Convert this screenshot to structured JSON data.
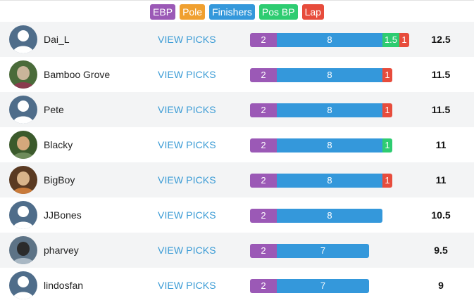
{
  "legend": [
    {
      "label": "EBP",
      "color": "#9b59b6"
    },
    {
      "label": "Pole",
      "color": "#f0a030"
    },
    {
      "label": "Finishers",
      "color": "#3498db"
    },
    {
      "label": "Pos BP",
      "color": "#2ecc71"
    },
    {
      "label": "Lap",
      "color": "#e74c3c"
    }
  ],
  "view_picks_label": "VIEW PICKS",
  "rows": [
    {
      "name": "Dai_L",
      "avatar": "default",
      "ebp": "2",
      "finishers": "8",
      "pos_bp": "1.5",
      "lap": "1",
      "score": "12.5"
    },
    {
      "name": "Bamboo Grove",
      "avatar": "photo",
      "ebp": "2",
      "finishers": "8",
      "pos_bp": "",
      "lap": "1",
      "score": "11.5"
    },
    {
      "name": "Pete",
      "avatar": "default",
      "ebp": "2",
      "finishers": "8",
      "pos_bp": "",
      "lap": "1",
      "score": "11.5"
    },
    {
      "name": "Blacky",
      "avatar": "photo",
      "ebp": "2",
      "finishers": "8",
      "pos_bp": "1",
      "lap": "",
      "score": "11"
    },
    {
      "name": "BigBoy",
      "avatar": "photo",
      "ebp": "2",
      "finishers": "8",
      "pos_bp": "",
      "lap": "1",
      "score": "11"
    },
    {
      "name": "JJBones",
      "avatar": "default",
      "ebp": "2",
      "finishers": "8",
      "pos_bp": "",
      "lap": "",
      "score": "10.5"
    },
    {
      "name": "pharvey",
      "avatar": "photo",
      "ebp": "2",
      "finishers": "7",
      "pos_bp": "",
      "lap": "",
      "score": "9.5"
    },
    {
      "name": "lindosfan",
      "avatar": "default",
      "ebp": "2",
      "finishers": "7",
      "pos_bp": "",
      "lap": "",
      "score": "9"
    }
  ]
}
